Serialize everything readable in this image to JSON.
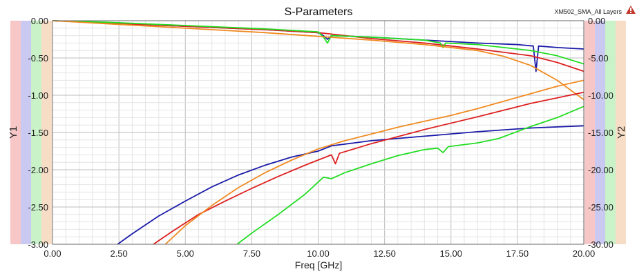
{
  "chart_data": {
    "type": "line",
    "title": "S-Parameters",
    "project_label": "XM502_SMA_All Layers",
    "xlabel": "Freq [GHz]",
    "ylabel_left": "Y1",
    "ylabel_right": "Y2",
    "xlim": [
      0,
      20
    ],
    "ylim_left": [
      -3,
      0
    ],
    "ylim_right": [
      -30,
      0
    ],
    "grid": true,
    "x_ticks": [
      "0.00",
      "2.50",
      "5.00",
      "7.50",
      "10.00",
      "12.50",
      "15.00",
      "17.50",
      "20.00"
    ],
    "y1_ticks": [
      "0.00",
      "-0.50",
      "-1.00",
      "-1.50",
      "-2.00",
      "-2.50",
      "-3.00"
    ],
    "y2_ticks": [
      "0.00",
      "-5.00",
      "-10.00",
      "-15.00",
      "-20.00",
      "-25.00",
      "-30.00"
    ],
    "axis_band_colors": [
      "#f7c6c6",
      "#c9c9f2",
      "#c9f2c9",
      "#f7dcc6"
    ],
    "series": [
      {
        "axis": "y1",
        "color": "#1a1aa8",
        "x": [
          0,
          2,
          4,
          6,
          8,
          10,
          10.2,
          10.35,
          10.5,
          12,
          14,
          16,
          17.5,
          18.1,
          18.2,
          18.3,
          19,
          20
        ],
        "y": [
          0,
          -0.03,
          -0.06,
          -0.09,
          -0.12,
          -0.16,
          -0.2,
          -0.25,
          -0.2,
          -0.22,
          -0.26,
          -0.3,
          -0.32,
          -0.34,
          -0.68,
          -0.34,
          -0.36,
          -0.38
        ]
      },
      {
        "axis": "y1",
        "color": "#dd2020",
        "x": [
          0,
          2,
          4,
          6,
          8,
          10,
          10.5,
          12,
          14,
          16,
          18,
          19,
          20
        ],
        "y": [
          0,
          -0.03,
          -0.06,
          -0.09,
          -0.12,
          -0.16,
          -0.18,
          -0.24,
          -0.3,
          -0.38,
          -0.47,
          -0.56,
          -0.68
        ]
      },
      {
        "axis": "y1",
        "color": "#22dd22",
        "x": [
          0,
          2,
          4,
          6,
          8,
          10,
          10.2,
          10.35,
          10.5,
          12,
          14,
          14.6,
          14.7,
          14.8,
          16,
          18,
          19,
          20
        ],
        "y": [
          0,
          -0.02,
          -0.05,
          -0.08,
          -0.11,
          -0.15,
          -0.22,
          -0.3,
          -0.2,
          -0.22,
          -0.26,
          -0.3,
          -0.36,
          -0.3,
          -0.32,
          -0.4,
          -0.47,
          -0.58
        ]
      },
      {
        "axis": "y1",
        "color": "#f08a20",
        "x": [
          0,
          2,
          4,
          6,
          8,
          10,
          12,
          14,
          16,
          17,
          18,
          19,
          20
        ],
        "y": [
          0,
          -0.04,
          -0.08,
          -0.12,
          -0.16,
          -0.21,
          -0.26,
          -0.32,
          -0.4,
          -0.48,
          -0.6,
          -0.8,
          -1.06
        ]
      },
      {
        "axis": "y2",
        "color": "#1a1aa8",
        "x": [
          2.45,
          3,
          4,
          5,
          6,
          7,
          8,
          9,
          10,
          10.5,
          12,
          14,
          16,
          18,
          20
        ],
        "y": [
          -30,
          -28.6,
          -26.2,
          -24.2,
          -22.3,
          -20.7,
          -19.4,
          -18.3,
          -17.5,
          -16.8,
          -16.1,
          -15.5,
          -14.9,
          -14.4,
          -14.1
        ]
      },
      {
        "axis": "y2",
        "color": "#dd2020",
        "x": [
          3.8,
          4.5,
          5.5,
          6.5,
          7.5,
          8.5,
          9.5,
          10.5,
          10.65,
          10.8,
          12,
          14,
          16,
          18,
          20
        ],
        "y": [
          -30,
          -28.3,
          -26.0,
          -24.2,
          -22.5,
          -20.9,
          -19.4,
          -18.0,
          -19.2,
          -17.8,
          -16.5,
          -14.6,
          -12.9,
          -11.1,
          -9.6
        ]
      },
      {
        "axis": "y2",
        "color": "#22dd22",
        "x": [
          6.95,
          7.5,
          8.5,
          9.5,
          10.2,
          10.5,
          11,
          12,
          13,
          14,
          14.5,
          14.7,
          14.9,
          16,
          16.8,
          18,
          19,
          20
        ],
        "y": [
          -30,
          -28.5,
          -26.0,
          -23.3,
          -21.0,
          -21.2,
          -20.4,
          -19.2,
          -18.1,
          -17.3,
          -17.1,
          -17.7,
          -16.9,
          -16.4,
          -15.8,
          -14.2,
          -13.0,
          -11.5
        ]
      },
      {
        "axis": "y2",
        "color": "#f08a20",
        "x": [
          4.25,
          5,
          6,
          7,
          8,
          9,
          10,
          11,
          12,
          13,
          14,
          15,
          16,
          17,
          18,
          19,
          20
        ],
        "y": [
          -30,
          -27.5,
          -24.8,
          -22.4,
          -20.4,
          -18.7,
          -17.2,
          -16.1,
          -15.2,
          -14.3,
          -13.5,
          -12.7,
          -11.8,
          -10.8,
          -9.8,
          -8.8,
          -8.0
        ]
      }
    ]
  }
}
